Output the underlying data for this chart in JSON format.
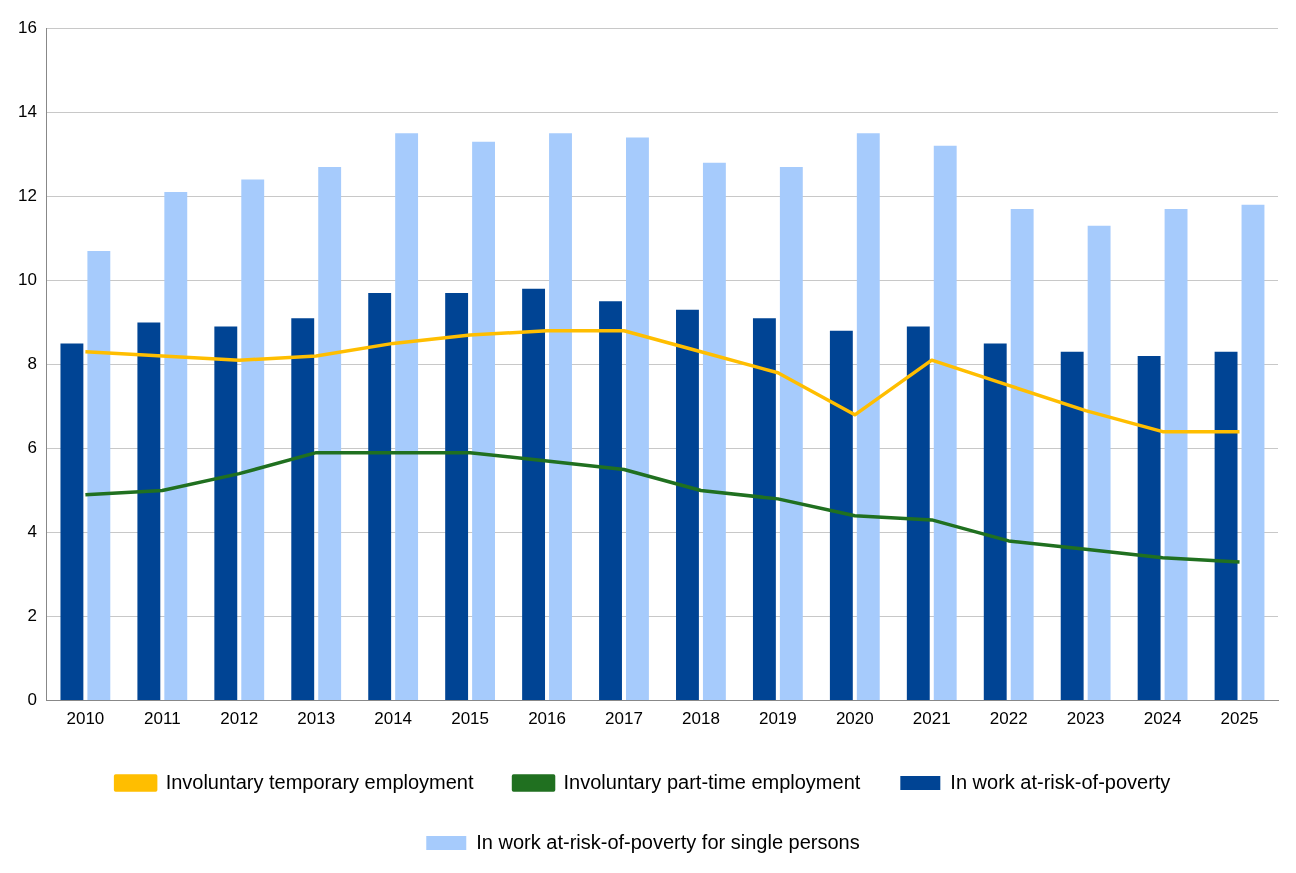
{
  "chart_data": {
    "type": "bar",
    "categories": [
      "2010",
      "2011",
      "2012",
      "2013",
      "2014",
      "2015",
      "2016",
      "2017",
      "2018",
      "2019",
      "2020",
      "2021",
      "2022",
      "2023",
      "2024",
      "2025"
    ],
    "series": [
      {
        "name": "In work at-risk-of-poverty",
        "color": "#004494",
        "values": [
          8.5,
          9.0,
          8.9,
          9.1,
          9.7,
          9.7,
          9.8,
          9.5,
          9.3,
          9.1,
          8.8,
          8.9,
          8.5,
          8.3,
          8.2,
          8.3
        ]
      },
      {
        "name": "In work at-risk-of-poverty for single persons",
        "color": "#a6cbfc",
        "values": [
          10.7,
          12.1,
          12.4,
          12.7,
          13.5,
          13.3,
          13.5,
          13.4,
          12.8,
          12.7,
          13.5,
          13.2,
          11.7,
          11.3,
          11.7,
          11.8
        ]
      },
      {
        "name": "Involuntary temporary employment",
        "type": "line",
        "color": "#ffbe00",
        "values": [
          8.3,
          8.2,
          8.1,
          8.2,
          8.5,
          8.7,
          8.8,
          8.8,
          8.3,
          7.8,
          6.8,
          8.1,
          7.5,
          6.9,
          6.4,
          6.4
        ]
      },
      {
        "name": "Involuntary part-time employment",
        "type": "line",
        "color": "#207020",
        "values": [
          4.9,
          5.0,
          5.4,
          5.9,
          5.9,
          5.9,
          5.7,
          5.5,
          5.0,
          4.8,
          4.4,
          4.3,
          3.8,
          3.6,
          3.4,
          3.3
        ]
      }
    ],
    "ylim": [
      0,
      16
    ],
    "yticks": [
      0,
      2,
      4,
      6,
      8,
      10,
      12,
      14,
      16
    ],
    "grid": "y",
    "legend": "bottom",
    "marker": "none",
    "line_style": "solid"
  }
}
